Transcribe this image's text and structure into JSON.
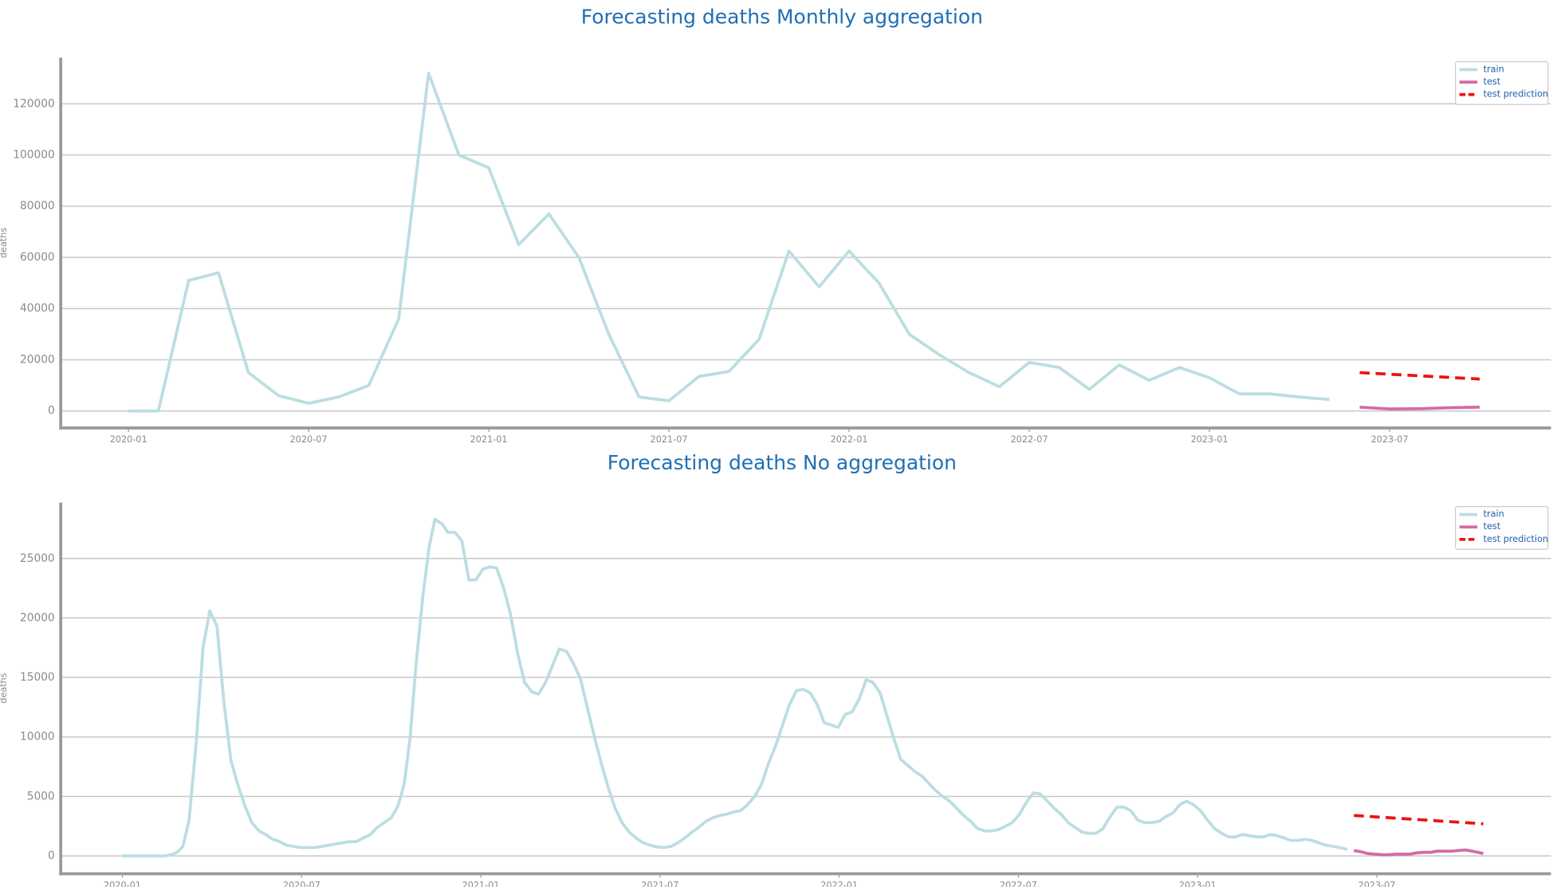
{
  "chart_data": [
    {
      "type": "line",
      "title": "Forecasting deaths Monthly aggregation",
      "y_label": "deaths",
      "xlim": [
        2019.812,
        2023.948
      ],
      "ylim": [
        -6600,
        138000
      ],
      "xticks": [
        {
          "value": 2020,
          "label": "2020-01"
        },
        {
          "value": 2020.5,
          "label": "2020-07"
        },
        {
          "value": 2021,
          "label": "2021-01"
        },
        {
          "value": 2021.5,
          "label": "2021-07"
        },
        {
          "value": 2022,
          "label": "2022-01"
        },
        {
          "value": 2022.5,
          "label": "2022-07"
        },
        {
          "value": 2023,
          "label": "2023-01"
        },
        {
          "value": 2023.5,
          "label": "2023-07"
        }
      ],
      "yticks": [
        0,
        20000,
        40000,
        60000,
        80000,
        100000,
        120000
      ],
      "grid": true,
      "legend": "upper right",
      "series": [
        {
          "name": "train",
          "color": "#bcdde2",
          "linestyle": "solid",
          "x": [
            2020,
            2020.083,
            2020.167,
            2020.25,
            2020.333,
            2020.417,
            2020.5,
            2020.583,
            2020.667,
            2020.75,
            2020.833,
            2020.917,
            2021,
            2021.083,
            2021.167,
            2021.25,
            2021.333,
            2021.417,
            2021.5,
            2021.583,
            2021.667,
            2021.75,
            2021.833,
            2021.917,
            2022,
            2022.083,
            2022.167,
            2022.25,
            2022.333,
            2022.417,
            2022.5,
            2022.583,
            2022.667,
            2022.75,
            2022.833,
            2022.917,
            2023,
            2023.083,
            2023.167,
            2023.25,
            2023.333
          ],
          "values": [
            0,
            0,
            51000,
            54000,
            15000,
            6000,
            3000,
            5500,
            10000,
            36000,
            132000,
            100000,
            95000,
            65000,
            77000,
            60000,
            30000,
            5500,
            4000,
            13500,
            15500,
            28000,
            62500,
            48500,
            62500,
            50000,
            30000,
            22000,
            15000,
            9500,
            19000,
            17000,
            8500,
            18000,
            12000,
            17000,
            13000,
            6700,
            6700,
            5500,
            4500
          ]
        },
        {
          "name": "test",
          "color": "#d46aa6",
          "linestyle": "solid",
          "x": [
            2023.417,
            2023.5,
            2023.583,
            2023.667,
            2023.75
          ],
          "values": [
            1500,
            800,
            900,
            1300,
            1500
          ]
        },
        {
          "name": "test prediction",
          "color": "#ee1111",
          "linestyle": "dashed",
          "x": [
            2023.417,
            2023.75
          ],
          "values": [
            15000,
            12500
          ]
        }
      ]
    },
    {
      "type": "line",
      "title": "Forecasting deaths No aggregation",
      "y_label": "deaths",
      "xlim": [
        2019.828,
        2023.986
      ],
      "ylim": [
        -1500,
        29700
      ],
      "xticks": [
        {
          "value": 2020,
          "label": "2020-01"
        },
        {
          "value": 2020.5,
          "label": "2020-07"
        },
        {
          "value": 2021,
          "label": "2021-01"
        },
        {
          "value": 2021.5,
          "label": "2021-07"
        },
        {
          "value": 2022,
          "label": "2022-01"
        },
        {
          "value": 2022.5,
          "label": "2022-07"
        },
        {
          "value": 2023,
          "label": "2023-01"
        },
        {
          "value": 2023.5,
          "label": "2023-07"
        }
      ],
      "yticks": [
        0,
        5000,
        10000,
        15000,
        20000,
        25000
      ],
      "grid": true,
      "legend": "upper right",
      "series": [
        {
          "name": "train",
          "color": "#bcdde2",
          "linestyle": "solid",
          "x": [
            2020,
            2020.019,
            2020.039,
            2020.058,
            2020.078,
            2020.097,
            2020.117,
            2020.136,
            2020.153,
            2020.169,
            2020.186,
            2020.206,
            2020.225,
            2020.244,
            2020.264,
            2020.283,
            2020.303,
            2020.322,
            2020.342,
            2020.361,
            2020.381,
            2020.4,
            2020.419,
            2020.439,
            2020.458,
            2020.478,
            2020.497,
            2020.517,
            2020.536,
            2020.556,
            2020.575,
            2020.594,
            2020.614,
            2020.633,
            2020.653,
            2020.672,
            2020.692,
            2020.711,
            2020.731,
            2020.75,
            2020.769,
            2020.786,
            2020.803,
            2020.819,
            2020.839,
            2020.856,
            2020.872,
            2020.892,
            2020.908,
            2020.928,
            2020.947,
            2020.967,
            2020.986,
            2021.006,
            2021.025,
            2021.044,
            2021.064,
            2021.083,
            2021.103,
            2021.122,
            2021.142,
            2021.161,
            2021.181,
            2021.2,
            2021.219,
            2021.239,
            2021.258,
            2021.278,
            2021.297,
            2021.317,
            2021.336,
            2021.356,
            2021.375,
            2021.394,
            2021.414,
            2021.433,
            2021.453,
            2021.472,
            2021.492,
            2021.511,
            2021.531,
            2021.55,
            2021.569,
            2021.589,
            2021.608,
            2021.628,
            2021.647,
            2021.667,
            2021.686,
            2021.706,
            2021.725,
            2021.744,
            2021.764,
            2021.783,
            2021.803,
            2021.822,
            2021.842,
            2021.861,
            2021.881,
            2021.9,
            2021.919,
            2021.939,
            2021.958,
            2021.978,
            2021.997,
            2022.017,
            2022.036,
            2022.056,
            2022.075,
            2022.094,
            2022.114,
            2022.133,
            2022.153,
            2022.172,
            2022.192,
            2022.211,
            2022.231,
            2022.25,
            2022.269,
            2022.289,
            2022.308,
            2022.328,
            2022.347,
            2022.367,
            2022.386,
            2022.406,
            2022.425,
            2022.444,
            2022.464,
            2022.483,
            2022.503,
            2022.522,
            2022.542,
            2022.561,
            2022.581,
            2022.6,
            2022.619,
            2022.639,
            2022.658,
            2022.678,
            2022.697,
            2022.717,
            2022.736,
            2022.756,
            2022.775,
            2022.794,
            2022.814,
            2022.833,
            2022.853,
            2022.872,
            2022.892,
            2022.911,
            2022.931,
            2022.95,
            2022.969,
            2022.989,
            2023.008,
            2023.028,
            2023.047,
            2023.067,
            2023.086,
            2023.106,
            2023.125,
            2023.144,
            2023.164,
            2023.183,
            2023.203,
            2023.222,
            2023.242,
            2023.261,
            2023.281,
            2023.3,
            2023.319,
            2023.339,
            2023.358,
            2023.378,
            2023.397,
            2023.417
          ],
          "values": [
            0,
            0,
            0,
            0,
            0,
            0,
            0,
            100,
            300,
            800,
            3000,
            9500,
            17500,
            20600,
            19300,
            13000,
            8000,
            6000,
            4200,
            2800,
            2100,
            1800,
            1400,
            1200,
            900,
            800,
            700,
            700,
            700,
            800,
            900,
            1000,
            1100,
            1200,
            1200,
            1500,
            1800,
            2400,
            2800,
            3200,
            4200,
            6000,
            10000,
            16000,
            22000,
            26000,
            28300,
            27900,
            27200,
            27200,
            26500,
            23200,
            23200,
            24100,
            24300,
            24200,
            22500,
            20300,
            17000,
            14600,
            13800,
            13600,
            14600,
            16000,
            17400,
            17200,
            16200,
            14900,
            12500,
            10000,
            7800,
            5700,
            4000,
            2800,
            2000,
            1500,
            1100,
            900,
            750,
            700,
            800,
            1100,
            1500,
            2000,
            2400,
            2900,
            3200,
            3400,
            3500,
            3700,
            3800,
            4300,
            5000,
            6000,
            7800,
            9200,
            11000,
            12700,
            13900,
            14000,
            13700,
            12700,
            11200,
            11000,
            10800,
            11900,
            12100,
            13200,
            14800,
            14600,
            13700,
            11800,
            9800,
            8100,
            7600,
            7100,
            6700,
            6100,
            5500,
            5000,
            4600,
            4000,
            3400,
            2900,
            2300,
            2100,
            2100,
            2200,
            2500,
            2800,
            3500,
            4500,
            5300,
            5200,
            4600,
            4000,
            3500,
            2800,
            2400,
            2000,
            1900,
            1900,
            2300,
            3300,
            4100,
            4100,
            3800,
            3000,
            2800,
            2800,
            2900,
            3300,
            3600,
            4300,
            4600,
            4300,
            3800,
            3000,
            2300,
            1900,
            1600,
            1600,
            1800,
            1700,
            1600,
            1600,
            1800,
            1700,
            1500,
            1300,
            1300,
            1400,
            1300,
            1100,
            900,
            800,
            700,
            550
          ]
        },
        {
          "name": "test",
          "color": "#d46aa6",
          "linestyle": "solid",
          "x": [
            2023.436,
            2023.456,
            2023.475,
            2023.494,
            2023.514,
            2023.533,
            2023.553,
            2023.572,
            2023.592,
            2023.611,
            2023.631,
            2023.65,
            2023.669,
            2023.689,
            2023.708,
            2023.728,
            2023.747,
            2023.767,
            2023.797
          ],
          "values": [
            450,
            350,
            200,
            150,
            100,
            100,
            150,
            150,
            150,
            250,
            300,
            300,
            400,
            400,
            400,
            450,
            500,
            400,
            200
          ]
        },
        {
          "name": "test prediction",
          "color": "#ee1111",
          "linestyle": "dashed",
          "x": [
            2023.436,
            2023.797
          ],
          "values": [
            3400,
            2700
          ]
        }
      ]
    }
  ]
}
